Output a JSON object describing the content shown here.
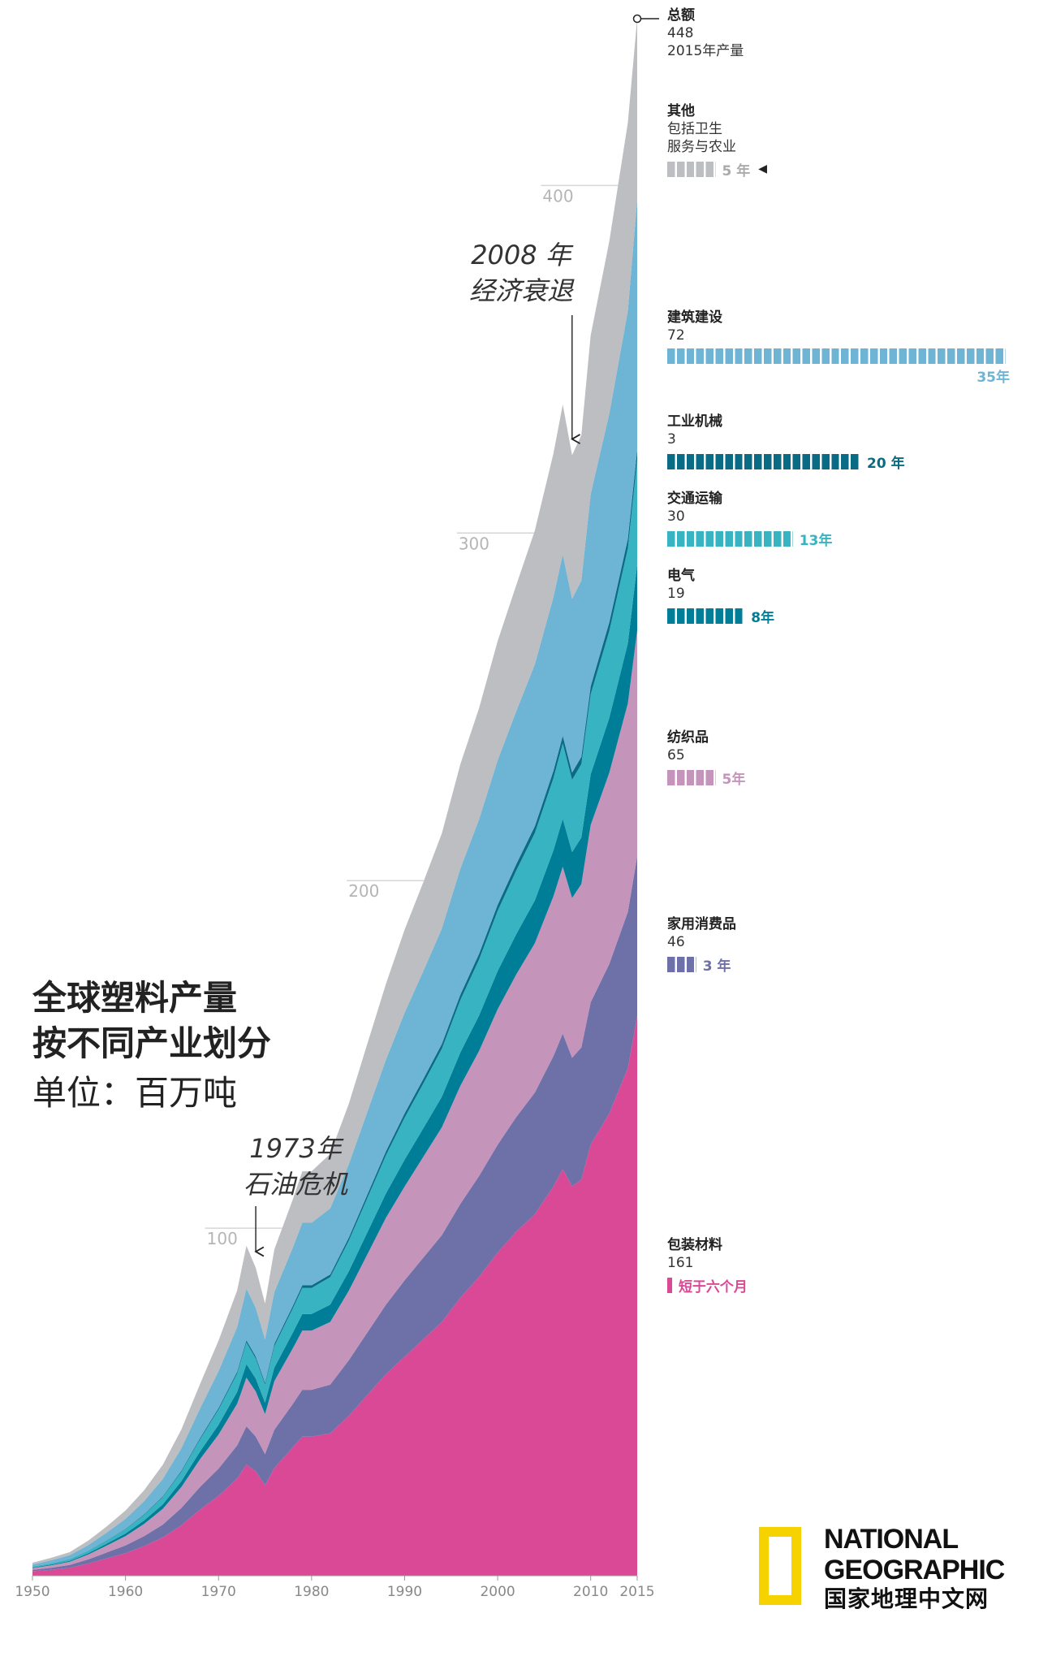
{
  "chart_data": {
    "type": "area",
    "stacked": true,
    "title_lines": [
      "全球塑料产量",
      "按不同产业划分"
    ],
    "unit": "单位：百万吨",
    "x": [
      1950,
      1952,
      1954,
      1956,
      1958,
      1960,
      1962,
      1964,
      1966,
      1968,
      1970,
      1972,
      1973,
      1974,
      1975,
      1976,
      1978,
      1979,
      1980,
      1982,
      1984,
      1986,
      1988,
      1990,
      1992,
      1994,
      1996,
      1998,
      2000,
      2002,
      2004,
      2006,
      2007,
      2008,
      2009,
      2010,
      2012,
      2014,
      2015
    ],
    "x_ticks": [
      1950,
      1960,
      1970,
      1980,
      1990,
      2000,
      2010,
      2015
    ],
    "y_ticks": [
      100,
      200,
      300,
      400
    ],
    "ylim": [
      0,
      448
    ],
    "series": [
      {
        "name": "包装材料",
        "color": "#d94996",
        "values": [
          1.3,
          1.7,
          2.3,
          3.5,
          5,
          6.5,
          8.5,
          11,
          14.5,
          19,
          23,
          28,
          32,
          30,
          26,
          31,
          37,
          40,
          40,
          41,
          46,
          52,
          58,
          63,
          68,
          73,
          80,
          86,
          93,
          99,
          104,
          112,
          117,
          112,
          114,
          124,
          133,
          146,
          161
        ]
      },
      {
        "name": "家用消费品",
        "color": "#6e70a8",
        "values": [
          0.4,
          0.6,
          0.8,
          1.2,
          1.7,
          2.2,
          2.9,
          3.7,
          5,
          6.5,
          7.8,
          9.5,
          11,
          10,
          9,
          11,
          12.5,
          13.5,
          13.5,
          14,
          16,
          18,
          20,
          22,
          23.5,
          25,
          27,
          29,
          31,
          33,
          35,
          37.5,
          39,
          37,
          38,
          41,
          43,
          45,
          46
        ]
      },
      {
        "name": "纺织品",
        "color": "#c594bb",
        "values": [
          0.5,
          0.7,
          0.9,
          1.4,
          2,
          2.7,
          3.5,
          4.5,
          6,
          8,
          9.8,
          12,
          14,
          13,
          11.5,
          14,
          16,
          17,
          17,
          18,
          20,
          22.5,
          25,
          27,
          29,
          31,
          34,
          36,
          39,
          41,
          43,
          46,
          48,
          46,
          47,
          51,
          55,
          60,
          65
        ]
      },
      {
        "name": "电气",
        "color": "#007e97",
        "values": [
          0.15,
          0.2,
          0.28,
          0.4,
          0.55,
          0.75,
          1,
          1.3,
          1.7,
          2.2,
          2.8,
          3.4,
          3.9,
          3.7,
          3.3,
          3.9,
          4.5,
          4.8,
          4.8,
          5,
          5.6,
          6.3,
          7,
          7.7,
          8.2,
          8.8,
          9.6,
          10.2,
          11,
          11.6,
          12.3,
          13.2,
          13.8,
          13.2,
          13.4,
          14.6,
          15.8,
          17.3,
          19
        ]
      },
      {
        "name": "交通运输",
        "color": "#38b3c1",
        "values": [
          0.25,
          0.35,
          0.45,
          0.65,
          0.9,
          1.2,
          1.6,
          2.1,
          2.7,
          3.5,
          4.4,
          5.3,
          6.2,
          5.8,
          5.2,
          6.2,
          7,
          7.5,
          7.5,
          7.9,
          8.8,
          9.9,
          11,
          12.1,
          12.9,
          13.8,
          15.1,
          16.1,
          17.3,
          18.3,
          19.4,
          20.8,
          21.7,
          20.8,
          21.1,
          23,
          25,
          27.3,
          30
        ]
      },
      {
        "name": "工业机械",
        "color": "#0a6b85",
        "values": [
          0.03,
          0.04,
          0.05,
          0.07,
          0.09,
          0.12,
          0.16,
          0.21,
          0.27,
          0.35,
          0.44,
          0.53,
          0.62,
          0.58,
          0.52,
          0.62,
          0.7,
          0.75,
          0.75,
          0.79,
          0.88,
          0.99,
          1.1,
          1.21,
          1.29,
          1.38,
          1.51,
          1.61,
          1.73,
          1.83,
          1.94,
          2.08,
          2.17,
          2.08,
          2.11,
          2.3,
          2.5,
          2.73,
          3
        ]
      },
      {
        "name": "建筑建设",
        "color": "#6eb4d4",
        "values": [
          0.6,
          0.85,
          1.1,
          1.6,
          2.2,
          2.9,
          3.8,
          5,
          6.5,
          8.5,
          10.6,
          12.8,
          14.9,
          14,
          12.5,
          14.9,
          16.8,
          18,
          18,
          19,
          21.1,
          23.8,
          26.4,
          29,
          31,
          33.2,
          36.3,
          38.7,
          41.6,
          44,
          46.6,
          50,
          52.2,
          50,
          50.7,
          55.3,
          60,
          65.6,
          72
        ]
      },
      {
        "name": "其他",
        "color": "#bcbec1",
        "values": [
          0.5,
          0.7,
          0.9,
          1.3,
          1.8,
          2.4,
          3.1,
          4.1,
          5.4,
          7,
          8.8,
          10.6,
          12.3,
          11.5,
          10.3,
          12.3,
          13.9,
          14.8,
          14.8,
          15.7,
          17.4,
          19.6,
          21.8,
          23.9,
          25.6,
          27.4,
          30,
          32,
          34.3,
          36.3,
          38.5,
          41.3,
          43.1,
          41.3,
          41.9,
          45.7,
          49.6,
          54.2,
          52
        ]
      }
    ],
    "total": {
      "label": "总额",
      "value": "448",
      "sub": "2015年产量"
    },
    "annotations": [
      {
        "year": 1974,
        "label_lines": [
          "1973年",
          "石油危机"
        ]
      },
      {
        "year": 2008,
        "label_lines": [
          "2008 年",
          "经济衰退"
        ]
      }
    ],
    "legend": [
      {
        "key": "other",
        "name": "其他",
        "lines": [
          "包括卫生",
          "服务与农业"
        ],
        "value": "",
        "lifetime": "5 年",
        "years": 5,
        "color": "#bcbec1",
        "label_color": "#aaaaaa",
        "marker": "◀"
      },
      {
        "key": "construction",
        "name": "建筑建设",
        "lines": [],
        "value": "72",
        "lifetime": "35年",
        "years": 35,
        "color": "#6eb4d4",
        "label_color": "#6eb4d4",
        "marker": ""
      },
      {
        "key": "industrial",
        "name": "工业机械",
        "lines": [],
        "value": "3",
        "lifetime": "20 年",
        "years": 20,
        "color": "#0a6b85",
        "label_color": "#0a6b85",
        "marker": ""
      },
      {
        "key": "transport",
        "name": "交通运输",
        "lines": [],
        "value": "30",
        "lifetime": "13年",
        "years": 13,
        "color": "#38b3c1",
        "label_color": "#38b3c1",
        "marker": ""
      },
      {
        "key": "electrical",
        "name": "电气",
        "lines": [],
        "value": "19",
        "lifetime": "8年",
        "years": 8,
        "color": "#007e97",
        "label_color": "#007e97",
        "marker": ""
      },
      {
        "key": "textiles",
        "name": "纺织品",
        "lines": [],
        "value": "65",
        "lifetime": "5年",
        "years": 5,
        "color": "#c594bb",
        "label_color": "#c594bb",
        "marker": ""
      },
      {
        "key": "consumer",
        "name": "家用消费品",
        "lines": [],
        "value": "46",
        "lifetime": "3 年",
        "years": 3,
        "color": "#6e70a8",
        "label_color": "#6e70a8",
        "marker": ""
      },
      {
        "key": "packaging",
        "name": "包装材料",
        "lines": [],
        "value": "161",
        "lifetime": "短于六个月",
        "years": 0.5,
        "color": "#d94996",
        "label_color": "#d94996",
        "marker": ""
      }
    ]
  },
  "logo": {
    "line1": "NATIONAL",
    "line2": "GEOGRAPHIC",
    "line3": "国家地理中文网"
  }
}
